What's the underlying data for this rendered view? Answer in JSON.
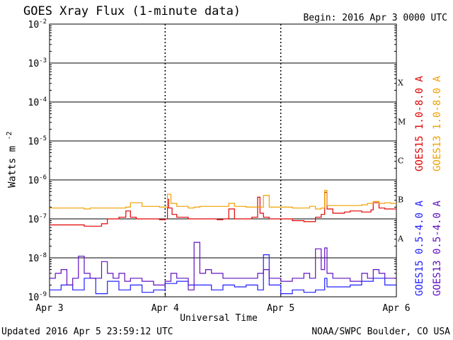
{
  "header": {
    "title": "GOES Xray Flux (1-minute data)",
    "begin_label": "Begin:",
    "begin_value": "2016 Apr 3 0000 UTC"
  },
  "footer": {
    "updated": "Updated 2016 Apr  5 23:59:12 UTC",
    "credit": "NOAA/SWPC Boulder, CO USA"
  },
  "colors": {
    "goes15_long": "#e00000",
    "goes13_long": "#f0a000",
    "goes15_short": "#2020ff",
    "goes13_short": "#6010c0",
    "grid": "#000000"
  },
  "chart_data": {
    "type": "line",
    "title": "GOES Xray Flux (1-minute data)",
    "xlabel": "Universal Time",
    "ylabel": "Watts m",
    "ylabel_exponent": "-2",
    "y_scale": "log",
    "ylim": [
      1e-09,
      0.01
    ],
    "x_unit": "days since 2016 Apr 3 00:00 UTC",
    "xlim": [
      0,
      3
    ],
    "x_ticks": [
      0,
      1,
      2,
      3
    ],
    "x_tick_labels": [
      "Apr 3",
      "Apr 4",
      "Apr 5",
      "Apr 6"
    ],
    "y_tick_exponents": [
      -9,
      -8,
      -7,
      -6,
      -5,
      -4,
      -3,
      -2
    ],
    "flare_classes": [
      {
        "label": "A",
        "low": 1e-08
      },
      {
        "label": "B",
        "low": 1e-07
      },
      {
        "label": "C",
        "low": 1e-06
      },
      {
        "label": "M",
        "low": 1e-05
      },
      {
        "label": "X",
        "low": 0.0001
      }
    ],
    "legend_placement": "right",
    "grid": true,
    "series": [
      {
        "name": "GOES15 1.0-8.0 A",
        "color": "#e00000",
        "x": [
          0,
          0.25,
          0.3,
          0.45,
          0.5,
          0.6,
          0.66,
          0.7,
          0.75,
          0.8,
          0.85,
          0.9,
          0.95,
          1.0,
          1.02,
          1.03,
          1.06,
          1.1,
          1.2,
          1.3,
          1.45,
          1.5,
          1.55,
          1.6,
          1.7,
          1.75,
          1.8,
          1.82,
          1.85,
          1.9,
          2.0,
          2.1,
          2.2,
          2.25,
          2.3,
          2.35,
          2.38,
          2.4,
          2.45,
          2.5,
          2.55,
          2.6,
          2.7,
          2.78,
          2.8,
          2.85,
          2.9,
          2.95,
          3.0
        ],
        "y": [
          7e-08,
          7e-08,
          6.5e-08,
          7.5e-08,
          1e-07,
          1.1e-07,
          1.6e-07,
          1.1e-07,
          1e-07,
          1e-07,
          1e-07,
          1e-07,
          9.5e-08,
          1e-07,
          3.2e-07,
          1.9e-07,
          1.3e-07,
          1.1e-07,
          1e-07,
          1e-07,
          9.5e-08,
          1e-07,
          1.8e-07,
          1e-07,
          1e-07,
          1.1e-07,
          3.6e-07,
          1.4e-07,
          1.1e-07,
          1e-07,
          1e-07,
          9e-08,
          8.5e-08,
          8.5e-08,
          1.1e-07,
          1.3e-07,
          4.8e-07,
          1.8e-07,
          1.4e-07,
          1.4e-07,
          1.5e-07,
          1.6e-07,
          1.5e-07,
          1.7e-07,
          2.6e-07,
          1.9e-07,
          1.8e-07,
          1.8e-07,
          1.8e-07
        ]
      },
      {
        "name": "GOES13 1.0-8.0 A",
        "color": "#f0a000",
        "x": [
          0,
          0.3,
          0.33,
          0.35,
          0.5,
          0.66,
          0.7,
          0.8,
          0.9,
          0.95,
          1.0,
          1.02,
          1.05,
          1.1,
          1.2,
          1.25,
          1.3,
          1.4,
          1.5,
          1.55,
          1.6,
          1.7,
          1.8,
          1.85,
          1.9,
          2.0,
          2.1,
          2.2,
          2.25,
          2.3,
          2.35,
          2.38,
          2.4,
          2.5,
          2.6,
          2.7,
          2.75,
          2.8,
          2.85,
          2.9,
          2.95,
          3.0
        ],
        "y": [
          1.9e-07,
          1.8e-07,
          1.8e-07,
          1.9e-07,
          1.9e-07,
          2e-07,
          2.6e-07,
          2.1e-07,
          2.1e-07,
          2e-07,
          2e-07,
          4.3e-07,
          2.5e-07,
          2.1e-07,
          1.9e-07,
          2e-07,
          2.1e-07,
          2.1e-07,
          2.1e-07,
          2.5e-07,
          2.1e-07,
          2e-07,
          2e-07,
          4e-07,
          2e-07,
          2e-07,
          1.9e-07,
          1.9e-07,
          2.1e-07,
          1.8e-07,
          1.9e-07,
          5.4e-07,
          2.2e-07,
          2.2e-07,
          2.2e-07,
          2.3e-07,
          2.5e-07,
          2.8e-07,
          2.5e-07,
          2.6e-07,
          2.5e-07,
          2.5e-07
        ]
      },
      {
        "name": "GOES15 0.5-4.0 A",
        "color": "#2020ff",
        "x": [
          0,
          0.1,
          0.2,
          0.3,
          0.4,
          0.5,
          0.6,
          0.7,
          0.8,
          0.9,
          1.0,
          1.1,
          1.2,
          1.3,
          1.4,
          1.5,
          1.6,
          1.7,
          1.8,
          1.85,
          1.9,
          2.0,
          2.1,
          2.2,
          2.3,
          2.38,
          2.4,
          2.5,
          2.6,
          2.7,
          2.8,
          2.9,
          3.0
        ],
        "y": [
          1.5e-09,
          2e-09,
          1.5e-09,
          3e-09,
          1.2e-09,
          2.5e-09,
          1.5e-09,
          2e-09,
          1.3e-09,
          1.5e-09,
          2.2e-09,
          2.5e-09,
          2e-09,
          2e-09,
          1.5e-09,
          2e-09,
          1.8e-09,
          2e-09,
          1.5e-09,
          1.2e-08,
          2e-09,
          1.2e-09,
          1.5e-09,
          1.3e-09,
          1.5e-09,
          3e-09,
          1.8e-09,
          1.8e-09,
          2e-09,
          2.5e-09,
          3e-09,
          2e-09,
          2e-09
        ]
      },
      {
        "name": "GOES13 0.5-4.0 A",
        "color": "#6010c0",
        "x": [
          0,
          0.05,
          0.1,
          0.15,
          0.2,
          0.25,
          0.3,
          0.35,
          0.4,
          0.45,
          0.5,
          0.55,
          0.6,
          0.65,
          0.7,
          0.8,
          0.9,
          1.0,
          1.05,
          1.1,
          1.2,
          1.25,
          1.3,
          1.35,
          1.4,
          1.5,
          1.6,
          1.7,
          1.8,
          1.85,
          1.9,
          2.0,
          2.1,
          2.2,
          2.25,
          2.3,
          2.35,
          2.38,
          2.4,
          2.45,
          2.5,
          2.6,
          2.7,
          2.75,
          2.8,
          2.85,
          2.9,
          2.95,
          3.0
        ],
        "y": [
          3e-09,
          4e-09,
          5e-09,
          2e-09,
          3e-09,
          1.1e-08,
          4e-09,
          3e-09,
          3e-09,
          8e-09,
          4e-09,
          3e-09,
          4e-09,
          2.5e-09,
          3e-09,
          2.5e-09,
          2e-09,
          2.5e-09,
          4e-09,
          3e-09,
          1.5e-09,
          2.5e-08,
          4e-09,
          5e-09,
          4e-09,
          3e-09,
          3e-09,
          3e-09,
          4e-09,
          5e-09,
          3e-09,
          2.5e-09,
          3e-09,
          4e-09,
          3e-09,
          1.7e-08,
          5e-09,
          1.8e-08,
          4e-09,
          3e-09,
          3e-09,
          2.5e-09,
          4e-09,
          3e-09,
          5e-09,
          4e-09,
          3e-09,
          3e-09,
          3e-09
        ]
      }
    ]
  }
}
